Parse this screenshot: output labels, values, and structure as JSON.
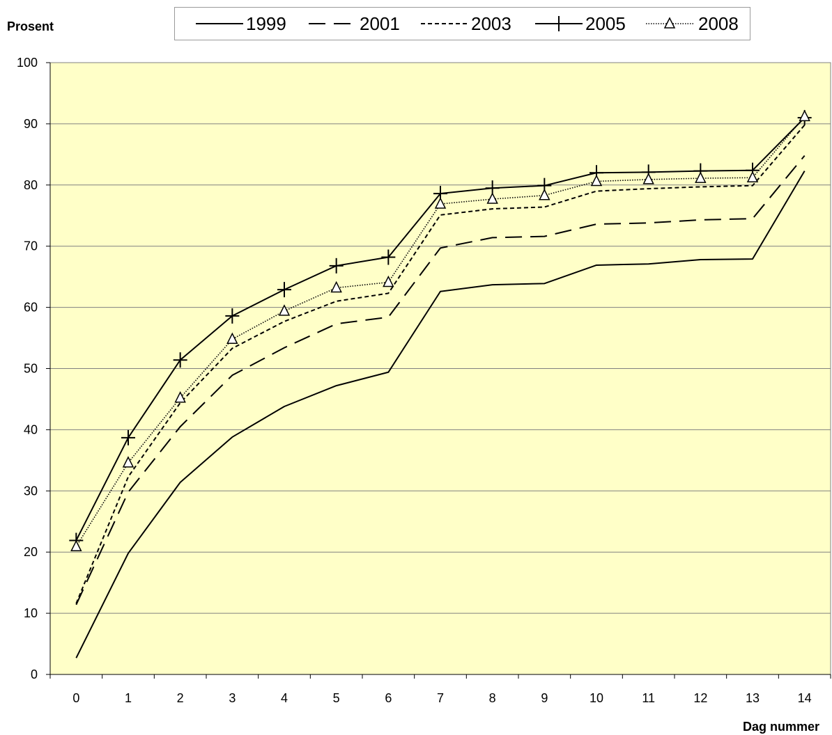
{
  "chart_data": {
    "type": "line",
    "ylabel": "Prosent",
    "xlabel": "Dag nummer",
    "x": [
      0,
      1,
      2,
      3,
      4,
      5,
      6,
      7,
      8,
      9,
      10,
      11,
      12,
      13,
      14
    ],
    "ylim": [
      0,
      100
    ],
    "yticks": [
      0,
      10,
      20,
      30,
      40,
      50,
      60,
      70,
      80,
      90,
      100
    ],
    "grid": true,
    "legend_position": "top",
    "background_color": "#ffffc8",
    "series": [
      {
        "name": "1999",
        "style": "solid",
        "marker": "none",
        "values": [
          2.7,
          19.8,
          31.4,
          38.8,
          43.8,
          47.2,
          49.4,
          62.6,
          63.7,
          63.9,
          66.9,
          67.1,
          67.8,
          67.9,
          82.3
        ]
      },
      {
        "name": "2001",
        "style": "longdash",
        "marker": "none",
        "values": [
          11.4,
          29.8,
          40.5,
          48.9,
          53.4,
          57.3,
          58.4,
          69.7,
          71.4,
          71.6,
          73.6,
          73.8,
          74.3,
          74.5,
          84.8
        ]
      },
      {
        "name": "2003",
        "style": "shortdash",
        "marker": "none",
        "values": [
          11.6,
          32.3,
          44.4,
          53.3,
          57.7,
          61.0,
          62.3,
          75.1,
          76.1,
          76.4,
          79.0,
          79.4,
          79.7,
          79.9,
          89.8
        ]
      },
      {
        "name": "2005",
        "style": "solid",
        "marker": "plus",
        "values": [
          21.9,
          38.7,
          51.4,
          58.6,
          62.9,
          66.8,
          68.2,
          78.6,
          79.5,
          79.9,
          82.0,
          82.1,
          82.3,
          82.4,
          91.0
        ]
      },
      {
        "name": "2008",
        "style": "dotted",
        "marker": "triangle",
        "values": [
          20.9,
          34.6,
          45.2,
          54.8,
          59.4,
          63.2,
          64.1,
          76.9,
          77.7,
          78.3,
          80.6,
          80.9,
          81.1,
          81.2,
          91.2
        ]
      }
    ]
  }
}
